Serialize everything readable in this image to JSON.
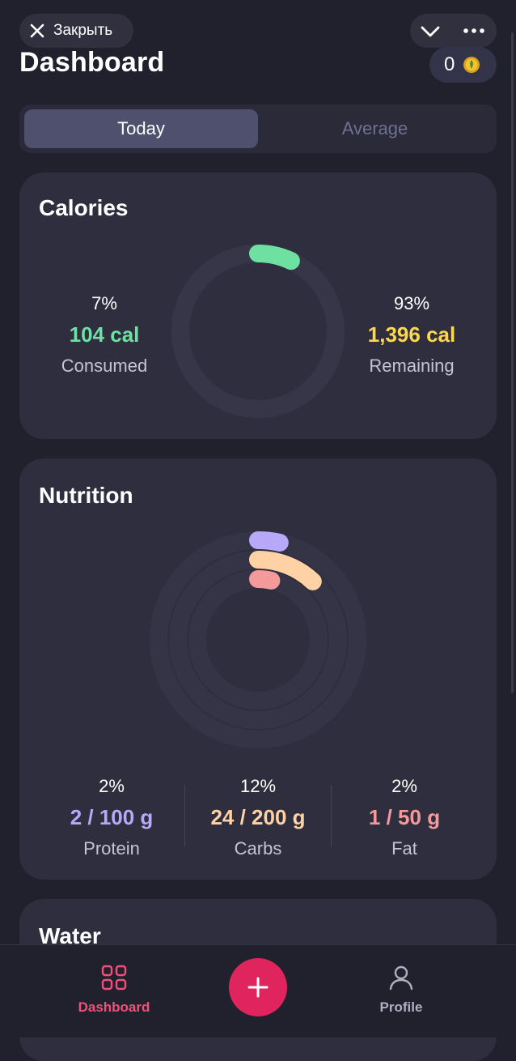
{
  "topbar": {
    "close_label": "Закрыть",
    "close_icon": "close-icon",
    "collapse_icon": "chevron-down-icon",
    "more_icon": "more-dots-icon"
  },
  "header": {
    "title": "Dashboard",
    "coins": "0",
    "coin_icon": "coin-icon"
  },
  "tabs": {
    "today": "Today",
    "average": "Average",
    "selected": "Today"
  },
  "calories": {
    "title": "Calories",
    "consumed_pct": "7%",
    "consumed_value": "104 cal",
    "consumed_label": "Consumed",
    "remaining_pct": "93%",
    "remaining_value": "1,396 cal",
    "remaining_label": "Remaining",
    "progress": 0.07
  },
  "nutrition": {
    "title": "Nutrition",
    "protein": {
      "pct": "2%",
      "value": "2 / 100 g",
      "label": "Protein",
      "progress": 0.02
    },
    "carbs": {
      "pct": "12%",
      "value": "24 / 200 g",
      "label": "Carbs",
      "progress": 0.12
    },
    "fat": {
      "pct": "2%",
      "value": "1 / 50 g",
      "label": "Fat",
      "progress": 0.02
    }
  },
  "water": {
    "title": "Water"
  },
  "bottom_nav": {
    "dashboard_label": "Dashboard",
    "profile_label": "Profile",
    "dashboard_icon": "grid-icon",
    "add_icon": "plus-icon",
    "profile_icon": "person-icon"
  },
  "colors": {
    "background": "#21212e",
    "card": "#2e2e3e",
    "calories_green": "#6ee0a2",
    "remaining_yellow": "#ffd84a",
    "protein_purple": "#b8a8f8",
    "carbs_peach": "#ffd2a6",
    "fat_pink": "#f59a9a",
    "accent_red": "#e0245e"
  }
}
